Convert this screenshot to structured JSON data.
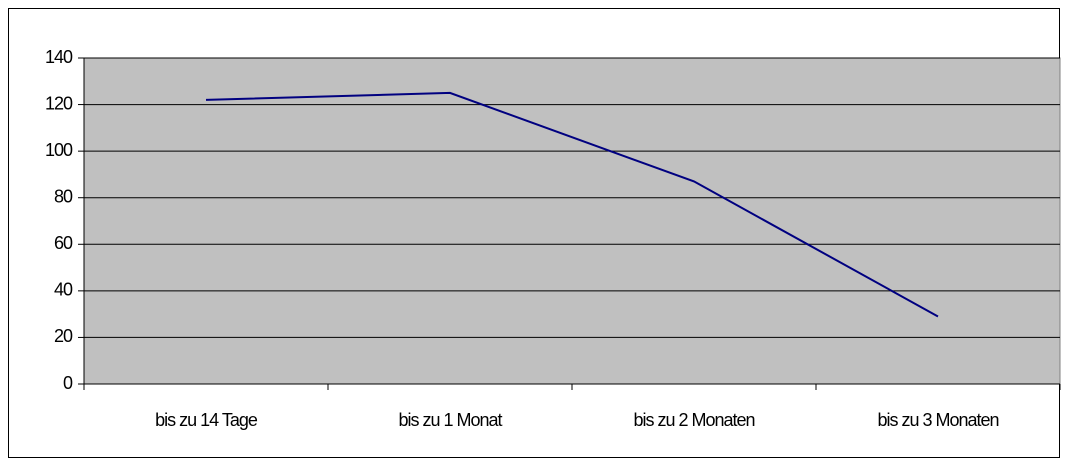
{
  "chart_data": {
    "type": "line",
    "categories": [
      "bis zu 14 Tage",
      "bis zu 1 Monat",
      "bis zu 2 Monaten",
      "bis zu 3 Monaten"
    ],
    "values": [
      122,
      125,
      87,
      29
    ],
    "color": "#000080",
    "ylim": [
      0,
      140
    ],
    "yticks": [
      0,
      20,
      40,
      60,
      80,
      100,
      120,
      140
    ],
    "grid": true
  }
}
